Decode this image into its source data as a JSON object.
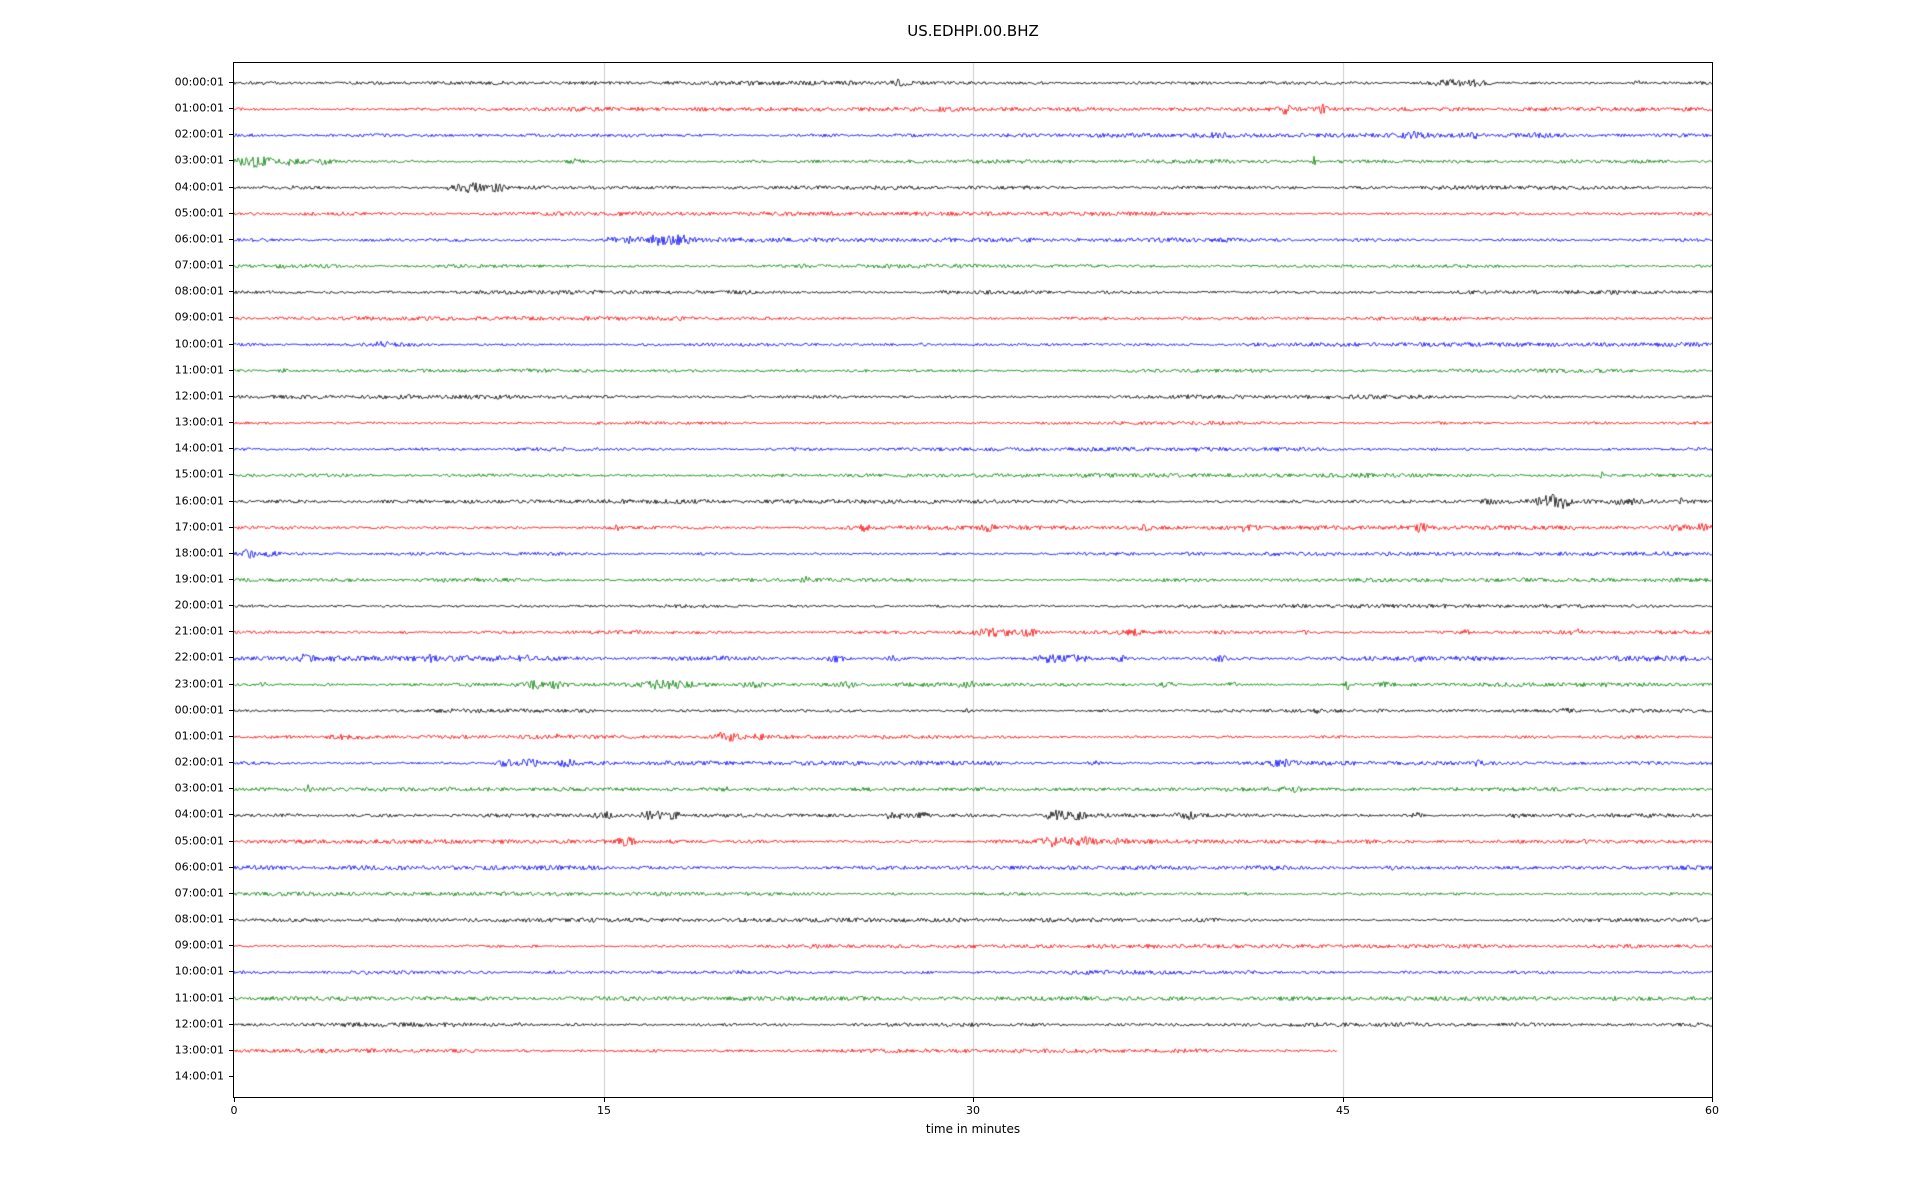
{
  "chart_data": {
    "type": "line",
    "title": "US.EDHPI.00.BHZ",
    "xlabel": "time in minutes",
    "xlim": [
      0,
      60
    ],
    "x_ticks": [
      0,
      15,
      30,
      45,
      60
    ],
    "grid": {
      "vertical_minutes": [
        15,
        30,
        45
      ],
      "color": "#cccccc"
    },
    "colors_cycle": [
      "#000000",
      "#ff0000",
      "#0000ff",
      "#008000"
    ],
    "rows": [
      {
        "label": "00:00:01",
        "color": "#000000",
        "end_minute": 60,
        "amp": 1.6,
        "events": [
          [
            27,
            2.5,
            0.15
          ],
          [
            49.3,
            3.5,
            0.5
          ],
          [
            50.5,
            2.5,
            0.3
          ],
          [
            57,
            1.5,
            0.2
          ]
        ]
      },
      {
        "label": "01:00:01",
        "color": "#ff0000",
        "end_minute": 60,
        "amp": 1.5,
        "events": [
          [
            29,
            1.5,
            0.2
          ],
          [
            42.7,
            5,
            0.12
          ],
          [
            44.2,
            5.5,
            0.1
          ]
        ]
      },
      {
        "label": "02:00:01",
        "color": "#0000ff",
        "end_minute": 60,
        "amp": 1.6,
        "events": [
          [
            40,
            1.5,
            0.3
          ],
          [
            48,
            2.5,
            0.4
          ],
          [
            50.3,
            2,
            0.3
          ],
          [
            53,
            1.5,
            0.2
          ]
        ]
      },
      {
        "label": "03:00:01",
        "color": "#008000",
        "end_minute": 60,
        "amp": 1.5,
        "events": [
          [
            0.8,
            4.5,
            0.5
          ],
          [
            2.2,
            3,
            0.4
          ],
          [
            3.6,
            2.5,
            0.3
          ],
          [
            13.8,
            2,
            0.2
          ],
          [
            26,
            1.5,
            0.2
          ],
          [
            43.8,
            5,
            0.08
          ]
        ]
      },
      {
        "label": "04:00:01",
        "color": "#000000",
        "end_minute": 60,
        "amp": 1.5,
        "events": [
          [
            8.8,
            2,
            0.2
          ],
          [
            9.6,
            4.5,
            0.4
          ],
          [
            10.7,
            3.5,
            0.25
          ]
        ]
      },
      {
        "label": "05:00:01",
        "color": "#ff0000",
        "end_minute": 60,
        "amp": 1.5,
        "events": [
          [
            3,
            1,
            0.2
          ]
        ]
      },
      {
        "label": "06:00:01",
        "color": "#0000ff",
        "end_minute": 60,
        "amp": 1.6,
        "events": [
          [
            15.2,
            2,
            0.2
          ],
          [
            16,
            2.5,
            0.3
          ],
          [
            17.3,
            4.5,
            0.35
          ],
          [
            18.2,
            3.5,
            0.25
          ]
        ]
      },
      {
        "label": "07:00:01",
        "color": "#008000",
        "end_minute": 60,
        "amp": 1.5,
        "events": []
      },
      {
        "label": "08:00:01",
        "color": "#000000",
        "end_minute": 60,
        "amp": 1.5,
        "events": []
      },
      {
        "label": "09:00:01",
        "color": "#ff0000",
        "end_minute": 60,
        "amp": 1.5,
        "events": []
      },
      {
        "label": "10:00:01",
        "color": "#0000ff",
        "end_minute": 60,
        "amp": 1.6,
        "events": [
          [
            6,
            1.5,
            0.3
          ],
          [
            28,
            1.2,
            0.2
          ]
        ]
      },
      {
        "label": "11:00:01",
        "color": "#008000",
        "end_minute": 60,
        "amp": 1.5,
        "events": [
          [
            2,
            1.5,
            0.2
          ],
          [
            23,
            1.2,
            0.2
          ]
        ]
      },
      {
        "label": "12:00:01",
        "color": "#000000",
        "end_minute": 60,
        "amp": 1.6,
        "events": []
      },
      {
        "label": "13:00:01",
        "color": "#ff0000",
        "end_minute": 60,
        "amp": 1.5,
        "events": []
      },
      {
        "label": "14:00:01",
        "color": "#0000ff",
        "end_minute": 60,
        "amp": 1.6,
        "events": []
      },
      {
        "label": "15:00:01",
        "color": "#008000",
        "end_minute": 60,
        "amp": 1.5,
        "events": [
          [
            46,
            1.2,
            0.15
          ],
          [
            55.5,
            3,
            0.06
          ]
        ]
      },
      {
        "label": "16:00:01",
        "color": "#000000",
        "end_minute": 60,
        "amp": 1.6,
        "events": [
          [
            51,
            1.5,
            0.2
          ],
          [
            53.4,
            6,
            0.3
          ],
          [
            54,
            4,
            0.2
          ],
          [
            56.5,
            2.5,
            0.25
          ],
          [
            58.8,
            2.5,
            0.25
          ]
        ]
      },
      {
        "label": "17:00:01",
        "color": "#ff0000",
        "end_minute": 60,
        "amp": 1.7,
        "events": [
          [
            15.5,
            2,
            0.15
          ],
          [
            25.6,
            2.5,
            0.15
          ],
          [
            30.6,
            2,
            0.15
          ],
          [
            37,
            2,
            0.15
          ],
          [
            41,
            1.8,
            0.15
          ],
          [
            48.2,
            2.5,
            0.2
          ],
          [
            58.6,
            3.5,
            0.3
          ],
          [
            59.6,
            3,
            0.2
          ]
        ]
      },
      {
        "label": "18:00:01",
        "color": "#0000ff",
        "end_minute": 60,
        "amp": 1.6,
        "events": [
          [
            0.6,
            3.5,
            0.25
          ],
          [
            1.5,
            2,
            0.2
          ]
        ]
      },
      {
        "label": "19:00:01",
        "color": "#008000",
        "end_minute": 60,
        "amp": 1.5,
        "events": [
          [
            23.2,
            2,
            0.12
          ]
        ]
      },
      {
        "label": "20:00:01",
        "color": "#000000",
        "end_minute": 60,
        "amp": 1.5,
        "events": []
      },
      {
        "label": "21:00:01",
        "color": "#ff0000",
        "end_minute": 60,
        "amp": 1.6,
        "events": [
          [
            31,
            3.5,
            0.5
          ],
          [
            32.3,
            3.5,
            0.3
          ],
          [
            36.5,
            1.8,
            0.15
          ],
          [
            43.5,
            2,
            0.12
          ],
          [
            50,
            1.5,
            0.15
          ],
          [
            54.5,
            2.5,
            0.25
          ]
        ]
      },
      {
        "label": "22:00:01",
        "color": "#0000ff",
        "end_minute": 60,
        "amp": 2.0,
        "events": [
          [
            2.9,
            2.5,
            0.15
          ],
          [
            8,
            2.5,
            0.15
          ],
          [
            11.8,
            2.5,
            0.2
          ],
          [
            19.8,
            2.5,
            0.15
          ],
          [
            24.4,
            3,
            0.3
          ],
          [
            26.8,
            2.5,
            0.2
          ],
          [
            33.2,
            3.5,
            0.4
          ],
          [
            34.3,
            3,
            0.25
          ],
          [
            36,
            2.5,
            0.2
          ],
          [
            40,
            2,
            0.2
          ],
          [
            48,
            1.8,
            0.2
          ]
        ]
      },
      {
        "label": "23:00:01",
        "color": "#008000",
        "end_minute": 60,
        "amp": 1.6,
        "events": [
          [
            1.2,
            4,
            0.1
          ],
          [
            12.3,
            3,
            0.4
          ],
          [
            13.1,
            2.5,
            0.3
          ],
          [
            17.4,
            3,
            0.4
          ],
          [
            18.2,
            2.5,
            0.3
          ],
          [
            21,
            2.8,
            0.25
          ],
          [
            24.8,
            2.5,
            0.25
          ],
          [
            29.8,
            2.5,
            0.25
          ],
          [
            37.8,
            2.5,
            0.25
          ],
          [
            40.5,
            2,
            0.2
          ],
          [
            45.2,
            5.5,
            0.1
          ],
          [
            46.8,
            2.5,
            0.2
          ]
        ]
      },
      {
        "label": "00:00:01",
        "color": "#000000",
        "end_minute": 60,
        "amp": 1.5,
        "events": [
          [
            29.8,
            2,
            0.15
          ],
          [
            44,
            1.3,
            0.15
          ],
          [
            54,
            1.8,
            0.25
          ]
        ]
      },
      {
        "label": "01:00:01",
        "color": "#ff0000",
        "end_minute": 60,
        "amp": 1.5,
        "events": [
          [
            4.3,
            2.2,
            0.4
          ],
          [
            5.2,
            1.8,
            0.2
          ],
          [
            13,
            1.3,
            0.15
          ],
          [
            20,
            4.5,
            0.35
          ],
          [
            21.3,
            2.5,
            0.2
          ]
        ]
      },
      {
        "label": "02:00:01",
        "color": "#0000ff",
        "end_minute": 60,
        "amp": 1.6,
        "events": [
          [
            11,
            3.5,
            0.3
          ],
          [
            12,
            3,
            0.3
          ],
          [
            13.5,
            2.5,
            0.25
          ],
          [
            35,
            1.5,
            0.2
          ],
          [
            42.5,
            2.5,
            0.35
          ],
          [
            50.5,
            2,
            0.15
          ]
        ]
      },
      {
        "label": "03:00:01",
        "color": "#008000",
        "end_minute": 60,
        "amp": 1.5,
        "events": [
          [
            3,
            4,
            0.08
          ],
          [
            20,
            1.2,
            0.15
          ],
          [
            43,
            2,
            0.25
          ]
        ]
      },
      {
        "label": "04:00:01",
        "color": "#000000",
        "end_minute": 60,
        "amp": 1.6,
        "events": [
          [
            15,
            2.5,
            0.25
          ],
          [
            17,
            3.5,
            0.4
          ],
          [
            17.9,
            3,
            0.25
          ],
          [
            26.8,
            3.5,
            0.3
          ],
          [
            27.9,
            3,
            0.25
          ],
          [
            33.4,
            3.5,
            0.4
          ],
          [
            34.2,
            2.5,
            0.25
          ],
          [
            38.7,
            2.5,
            0.3
          ],
          [
            48,
            2,
            0.25
          ],
          [
            52,
            1.5,
            0.2
          ]
        ]
      },
      {
        "label": "05:00:01",
        "color": "#ff0000",
        "end_minute": 60,
        "amp": 1.5,
        "events": [
          [
            15.9,
            3.5,
            0.25
          ],
          [
            33.4,
            4,
            0.5
          ],
          [
            34.6,
            3.5,
            0.3
          ],
          [
            36,
            2,
            0.2
          ]
        ]
      },
      {
        "label": "06:00:01",
        "color": "#0000ff",
        "end_minute": 60,
        "amp": 1.6,
        "events": [
          [
            47,
            1.5,
            0.25
          ]
        ]
      },
      {
        "label": "07:00:01",
        "color": "#008000",
        "end_minute": 60,
        "amp": 1.5,
        "events": []
      },
      {
        "label": "08:00:01",
        "color": "#000000",
        "end_minute": 60,
        "amp": 1.5,
        "events": []
      },
      {
        "label": "09:00:01",
        "color": "#ff0000",
        "end_minute": 60,
        "amp": 1.5,
        "events": [
          [
            20.2,
            1.8,
            0.1
          ]
        ]
      },
      {
        "label": "10:00:01",
        "color": "#0000ff",
        "end_minute": 60,
        "amp": 1.6,
        "events": []
      },
      {
        "label": "11:00:01",
        "color": "#008000",
        "end_minute": 60,
        "amp": 1.5,
        "events": []
      },
      {
        "label": "12:00:01",
        "color": "#000000",
        "end_minute": 60,
        "amp": 1.6,
        "events": []
      },
      {
        "label": "13:00:01",
        "color": "#ff0000",
        "end_minute": 44.8,
        "amp": 1.5,
        "events": []
      },
      {
        "label": "14:00:01",
        "color": "#0000ff",
        "end_minute": 0,
        "amp": 0,
        "events": []
      }
    ]
  }
}
